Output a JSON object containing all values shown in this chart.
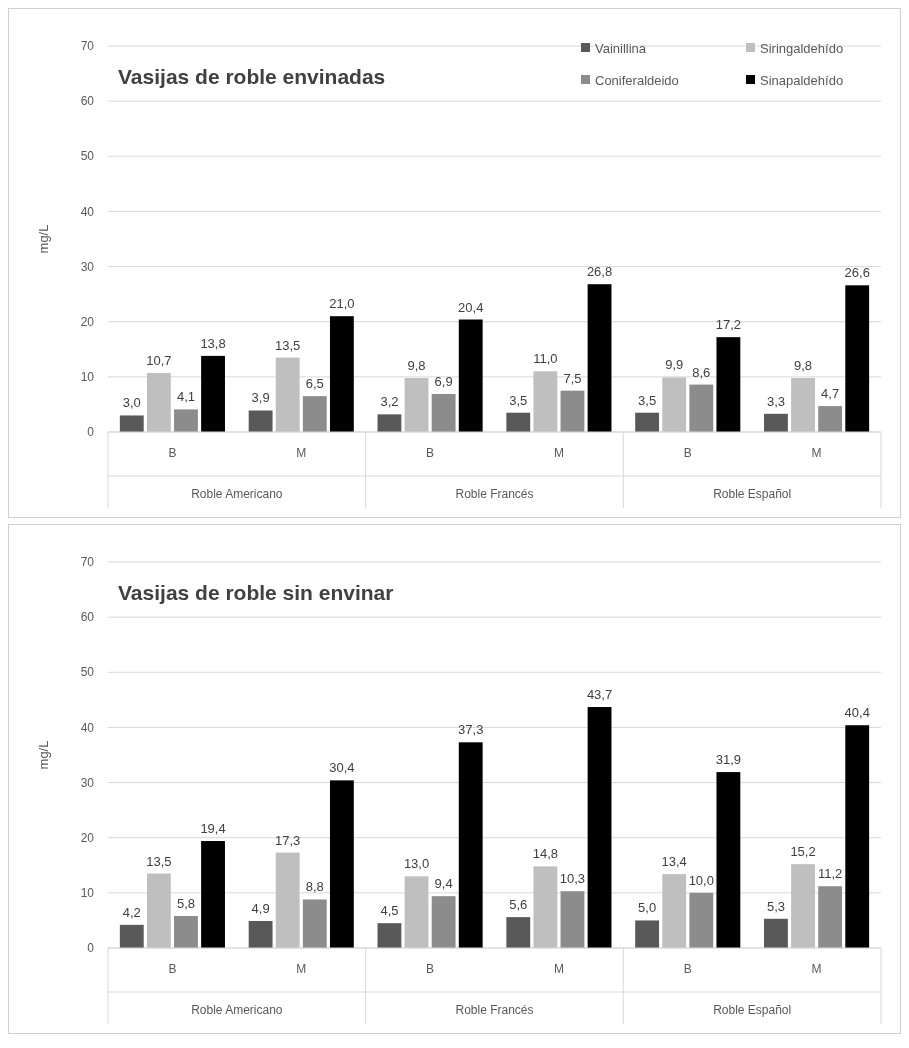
{
  "chart_data": [
    {
      "type": "bar",
      "title": "Vasijas de roble envinadas",
      "ylabel": "mg/L",
      "categories": [
        "B",
        "M",
        "B",
        "M",
        "B",
        "M"
      ],
      "annotations": [
        "Roble Americano",
        "Roble Francés",
        "Roble Español"
      ],
      "ylim": [
        0,
        70
      ],
      "yticks": [
        0,
        10,
        20,
        30,
        40,
        50,
        60,
        70
      ],
      "grid": "y",
      "legend": "top right",
      "series": [
        {
          "name": "Vainillina",
          "color": "#595959",
          "values": [
            3.0,
            3.9,
            3.2,
            3.5,
            3.5,
            3.3
          ],
          "value_labels": [
            "3,0",
            "3,9",
            "3,2",
            "3,5",
            "3,5",
            "3,3"
          ]
        },
        {
          "name": "Siringaldehído",
          "color": "#bfbfbf",
          "values": [
            10.7,
            13.5,
            9.8,
            11.0,
            9.9,
            9.8
          ],
          "value_labels": [
            "10,7",
            "13,5",
            "9,8",
            "11,0",
            "9,9",
            "9,8"
          ]
        },
        {
          "name": "Coniferaldeido",
          "color": "#8c8c8c",
          "values": [
            4.1,
            6.5,
            6.9,
            7.5,
            8.6,
            4.7
          ],
          "value_labels": [
            "4,1",
            "6,5",
            "6,9",
            "7,5",
            "8,6",
            "4,7"
          ]
        },
        {
          "name": "Sinapaldehído",
          "color": "#000000",
          "values": [
            13.8,
            21.0,
            20.4,
            26.8,
            17.2,
            26.6
          ],
          "value_labels": [
            "13,8",
            "21,0",
            "20,4",
            "26,8",
            "17,2",
            "26,6"
          ]
        }
      ]
    },
    {
      "type": "bar",
      "title": "Vasijas de roble sin envinar",
      "ylabel": "mg/L",
      "categories": [
        "B",
        "M",
        "B",
        "M",
        "B",
        "M"
      ],
      "annotations": [
        "Roble Americano",
        "Roble Francés",
        "Roble Español"
      ],
      "ylim": [
        0,
        70
      ],
      "yticks": [
        0,
        10,
        20,
        30,
        40,
        50,
        60,
        70
      ],
      "grid": "y",
      "series": [
        {
          "color": "#595959",
          "values": [
            4.2,
            4.9,
            4.5,
            5.6,
            5.0,
            5.3
          ],
          "value_labels": [
            "4,2",
            "4,9",
            "4,5",
            "5,6",
            "5,0",
            "5,3"
          ]
        },
        {
          "color": "#bfbfbf",
          "values": [
            13.5,
            17.3,
            13.0,
            14.8,
            13.4,
            15.2
          ],
          "value_labels": [
            "13,5",
            "17,3",
            "13,0",
            "14,8",
            "13,4",
            "15,2"
          ]
        },
        {
          "color": "#8c8c8c",
          "values": [
            5.8,
            8.8,
            9.4,
            10.3,
            10.0,
            11.2
          ],
          "value_labels": [
            "5,8",
            "8,8",
            "9,4",
            "10,3",
            "10,0",
            "11,2"
          ]
        },
        {
          "color": "#000000",
          "values": [
            19.4,
            30.4,
            37.3,
            43.7,
            31.9,
            40.4
          ],
          "value_labels": [
            "19,4",
            "30,4",
            "37,3",
            "43,7",
            "31,9",
            "40,4"
          ]
        }
      ]
    }
  ]
}
